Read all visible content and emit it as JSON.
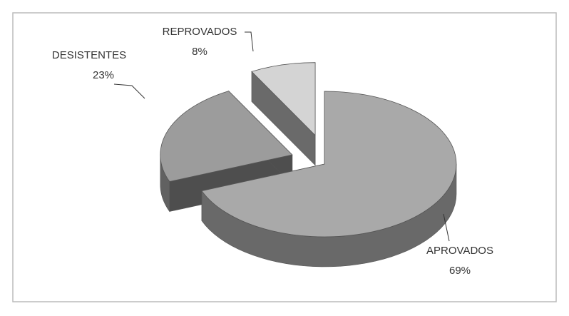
{
  "chart_data": {
    "type": "pie",
    "categories": [
      "APROVADOS",
      "DESISTENTES",
      "REPROVADOS"
    ],
    "values": [
      69,
      23,
      8
    ],
    "value_labels": [
      "69%",
      "23%",
      "8%"
    ],
    "colors": [
      "#a9a9a9",
      "#9c9c9c",
      "#d4d4d4"
    ]
  }
}
